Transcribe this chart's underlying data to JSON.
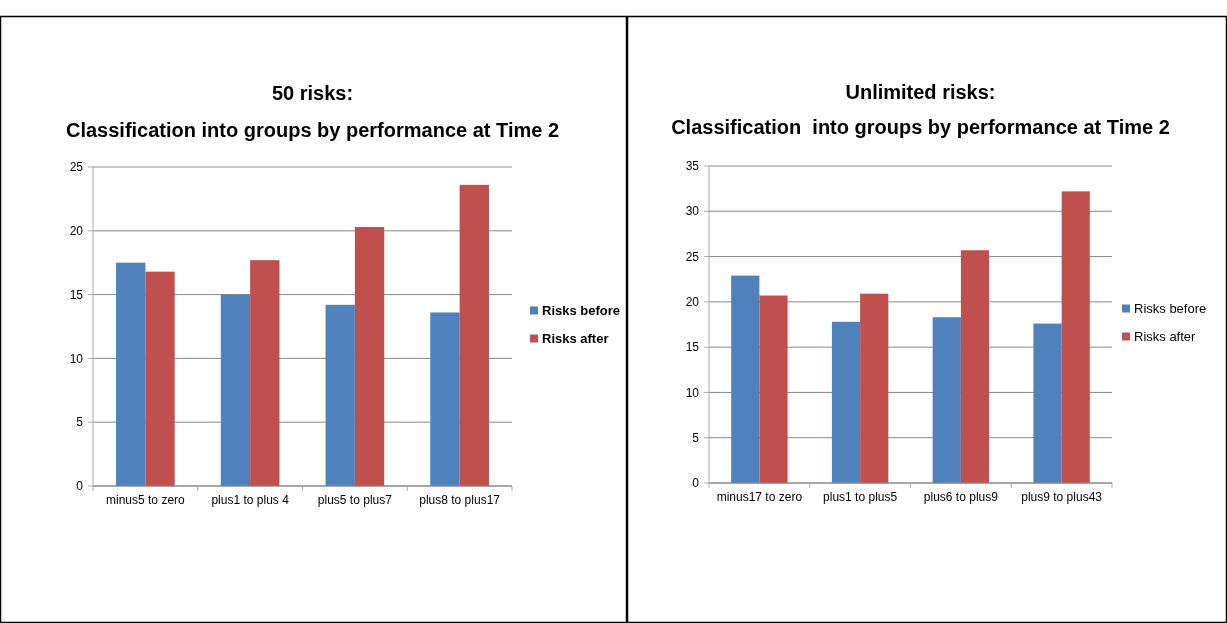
{
  "chart_data": [
    {
      "type": "bar",
      "title": "50 risks:\nClassification into groups by performance at Time 2",
      "categories": [
        "minus5 to zero",
        "plus1 to plus 4",
        "plus5 to plus7",
        "plus8 to plus17"
      ],
      "series": [
        {
          "name": "Risks before",
          "color": "#4f81bd",
          "values": [
            17.5,
            15.0,
            14.2,
            13.6
          ]
        },
        {
          "name": "Risks after",
          "color": "#c0504d",
          "values": [
            16.8,
            17.7,
            20.3,
            23.6
          ]
        }
      ],
      "ylim": [
        0,
        25
      ],
      "yticks": [
        0,
        5,
        10,
        15,
        20,
        25
      ],
      "grid": "y",
      "legend": "right"
    },
    {
      "type": "bar",
      "title": "Unlimited risks:\nClassification  into groups by performance at Time 2",
      "categories": [
        "minus17 to zero",
        "plus1 to plus5",
        "plus6 to plus9",
        "plus9 to plus43"
      ],
      "series": [
        {
          "name": "Risks before",
          "color": "#4f81bd",
          "values": [
            22.9,
            17.8,
            18.3,
            17.6
          ]
        },
        {
          "name": "Risks after",
          "color": "#c0504d",
          "values": [
            20.7,
            20.9,
            25.7,
            32.2
          ]
        }
      ],
      "ylim": [
        0,
        35
      ],
      "yticks": [
        0,
        5,
        10,
        15,
        20,
        25,
        30,
        35
      ],
      "grid": "y",
      "legend": "right"
    }
  ]
}
